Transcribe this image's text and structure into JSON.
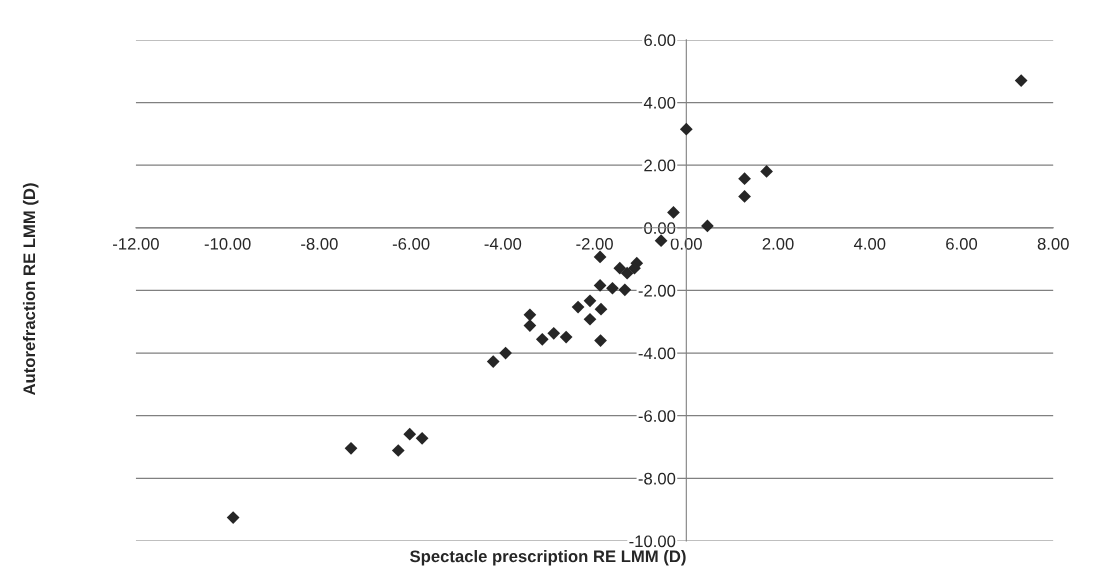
{
  "chart_data": {
    "type": "scatter",
    "xlabel": "Spectacle prescription RE LMM (D)",
    "ylabel": "Autorefraction RE LMM (D)",
    "x": [
      0.0,
      1.27,
      1.27,
      1.75,
      -0.28,
      0.46,
      -0.55,
      -1.08,
      -1.13,
      -1.29,
      -1.45,
      -1.88,
      -1.88,
      -1.61,
      -1.34,
      -2.1,
      -2.36,
      -1.86,
      -2.1,
      -1.87,
      -3.41,
      -3.41,
      -3.14,
      -2.89,
      -2.62,
      -4.21,
      -3.94,
      -9.88,
      -7.31,
      -6.28,
      -6.03,
      -5.76,
      7.3
    ],
    "series": [
      {
        "color": "#262626",
        "values": [
          3.15,
          1.57,
          1.0,
          1.8,
          0.49,
          0.06,
          -0.41,
          -1.13,
          -1.29,
          -1.45,
          -1.29,
          -0.93,
          -1.84,
          -1.93,
          -1.98,
          -2.33,
          -2.53,
          -2.6,
          -2.92,
          -3.6,
          -2.78,
          -3.12,
          -3.56,
          -3.37,
          -3.49,
          -4.27,
          -4.0,
          -9.25,
          -7.04,
          -7.11,
          -6.59,
          -6.72,
          4.7
        ]
      }
    ],
    "marker": "diamond",
    "xlim": [
      -12,
      8
    ],
    "ylim": [
      -10,
      6
    ],
    "xticks": [
      {
        "value": -12,
        "label": "-12.00"
      },
      {
        "value": -10,
        "label": "-10.00"
      },
      {
        "value": -8,
        "label": "-8.00"
      },
      {
        "value": -6,
        "label": "-6.00"
      },
      {
        "value": -4,
        "label": "-4.00"
      },
      {
        "value": -2,
        "label": "-2.00"
      },
      {
        "value": 0,
        "label": "0.00"
      },
      {
        "value": 2,
        "label": "2.00"
      },
      {
        "value": 4,
        "label": "4.00"
      },
      {
        "value": 6,
        "label": "6.00"
      },
      {
        "value": 8,
        "label": "8.00"
      }
    ],
    "yticks": [
      {
        "value": -10,
        "label": "-10.00"
      },
      {
        "value": -8,
        "label": "-8.00"
      },
      {
        "value": -6,
        "label": "-6.00"
      },
      {
        "value": -4,
        "label": "-4.00"
      },
      {
        "value": -2,
        "label": "-2.00"
      },
      {
        "value": 0,
        "label": "0.00"
      },
      {
        "value": 2,
        "label": "2.00"
      },
      {
        "value": 4,
        "label": "4.00"
      },
      {
        "value": 6,
        "label": "6.00"
      }
    ],
    "grid": "y"
  }
}
